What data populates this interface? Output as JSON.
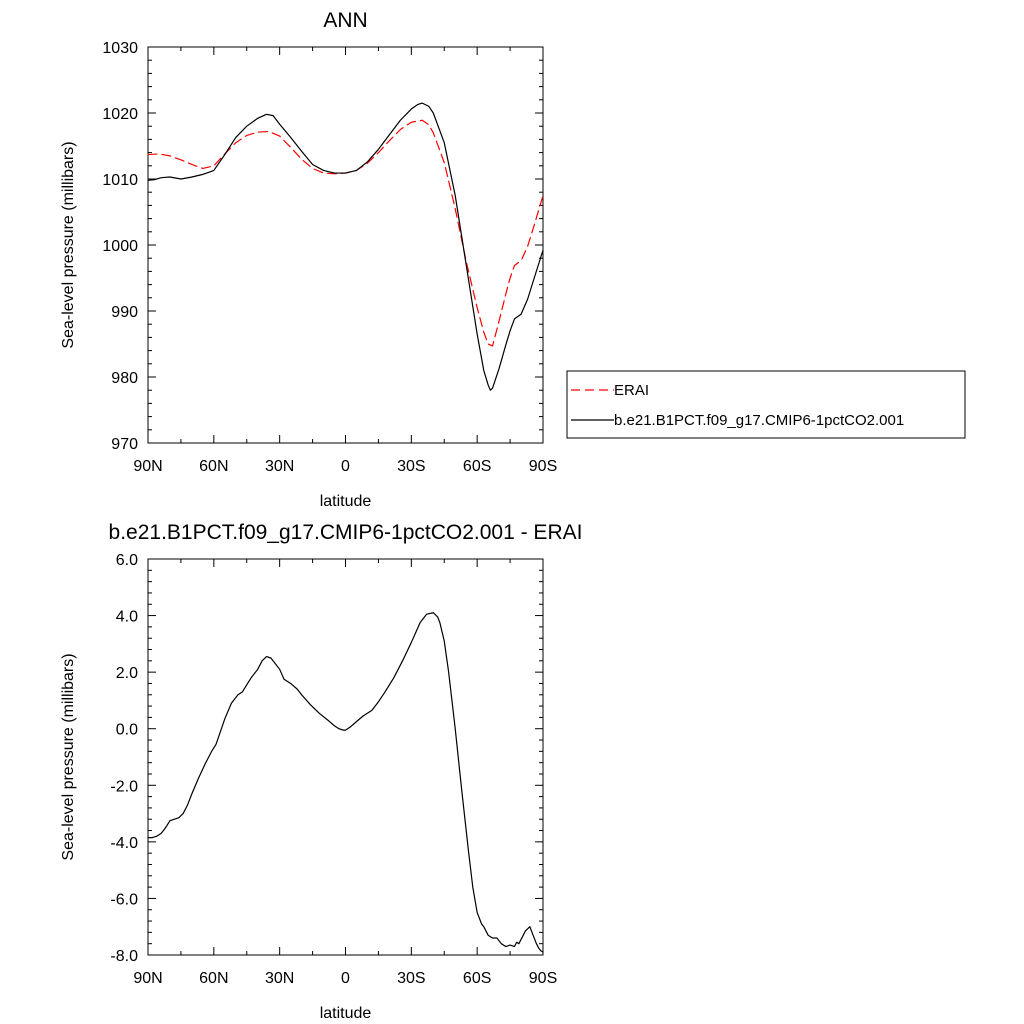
{
  "chart_data": [
    {
      "type": "line",
      "title": "ANN",
      "xlabel": "latitude",
      "ylabel": "Sea-level pressure (millibars)",
      "xlim": [
        90,
        -90
      ],
      "ylim": [
        970,
        1030
      ],
      "xticks": [
        90,
        60,
        30,
        0,
        -30,
        -60,
        -90
      ],
      "xtick_labels": [
        "90N",
        "60N",
        "30N",
        "0",
        "30S",
        "60S",
        "90S"
      ],
      "yticks": [
        970,
        980,
        990,
        1000,
        1010,
        1020,
        1030
      ],
      "ytick_labels": [
        "970",
        "980",
        "990",
        "1000",
        "1010",
        "1020",
        "1030"
      ],
      "grid": false,
      "legend_position": "right",
      "series": [
        {
          "name": "ERAI",
          "color": "#ff0000",
          "dash": "dashed",
          "x": [
            90,
            85,
            80,
            75,
            70,
            65,
            60,
            55,
            50,
            45,
            40,
            35,
            30,
            25,
            20,
            15,
            10,
            5,
            0,
            -5,
            -10,
            -15,
            -20,
            -25,
            -30,
            -35,
            -38,
            -40,
            -45,
            -50,
            -55,
            -60,
            -63,
            -65,
            -67,
            -70,
            -73,
            -75,
            -77,
            -80,
            -83,
            -86,
            -90
          ],
          "y": [
            1013.7,
            1013.8,
            1013.5,
            1012.9,
            1012.2,
            1011.6,
            1012.0,
            1013.8,
            1015.5,
            1016.6,
            1017.1,
            1017.2,
            1016.5,
            1014.8,
            1013.0,
            1011.6,
            1010.9,
            1010.8,
            1010.9,
            1011.3,
            1012.4,
            1014.0,
            1015.8,
            1017.5,
            1018.6,
            1018.9,
            1018.2,
            1017.0,
            1012.5,
            1005.5,
            997.5,
            990.5,
            986.8,
            985.0,
            984.7,
            988.5,
            992.5,
            995.0,
            996.9,
            997.6,
            999.8,
            1003.0,
            1007.5
          ]
        },
        {
          "name": "b.e21.B1PCT.f09_g17.CMIP6-1pctCO2.001",
          "color": "#000000",
          "dash": "solid",
          "x": [
            90,
            87,
            84,
            80,
            75,
            70,
            65,
            60,
            55,
            50,
            45,
            40,
            36,
            33,
            30,
            25,
            20,
            15,
            10,
            5,
            0,
            -5,
            -10,
            -15,
            -20,
            -25,
            -30,
            -33,
            -35,
            -38,
            -40,
            -45,
            -50,
            -55,
            -60,
            -63,
            -65,
            -66,
            -67,
            -70,
            -73,
            -75,
            -77,
            -80,
            -83,
            -86,
            -90
          ],
          "y": [
            1009.8,
            1009.9,
            1010.2,
            1010.3,
            1010.0,
            1010.3,
            1010.7,
            1011.3,
            1013.7,
            1016.3,
            1018.0,
            1019.2,
            1019.8,
            1019.6,
            1018.3,
            1016.3,
            1014.2,
            1012.2,
            1011.3,
            1010.9,
            1010.9,
            1011.3,
            1012.6,
            1014.5,
            1016.7,
            1018.9,
            1020.6,
            1021.3,
            1021.5,
            1021.0,
            1020.0,
            1015.5,
            1007.5,
            997.0,
            986.5,
            981.0,
            978.8,
            978.0,
            978.3,
            981.3,
            984.8,
            987.0,
            988.8,
            989.5,
            991.8,
            995.0,
            999.2
          ]
        }
      ]
    },
    {
      "type": "line",
      "title": "b.e21.B1PCT.f09_g17.CMIP6-1pctCO2.001 - ERAI",
      "xlabel": "latitude",
      "ylabel": "Sea-level pressure (millibars)",
      "xlim": [
        90,
        -90
      ],
      "ylim": [
        -8,
        6
      ],
      "xticks": [
        90,
        60,
        30,
        0,
        -30,
        -60,
        -90
      ],
      "xtick_labels": [
        "90N",
        "60N",
        "30N",
        "0",
        "30S",
        "60S",
        "90S"
      ],
      "yticks": [
        -8,
        -6,
        -4,
        -2,
        0,
        2,
        4,
        6
      ],
      "ytick_labels": [
        "-8.0",
        "-6.0",
        "-4.0",
        "-2.0",
        "0.0",
        "2.0",
        "4.0",
        "6.0"
      ],
      "grid": false,
      "series": [
        {
          "color": "#000000",
          "dash": "solid",
          "x": [
            90,
            88,
            86,
            84,
            82,
            80,
            78,
            76,
            74,
            72,
            70,
            67,
            64,
            61,
            59,
            57,
            55,
            52,
            49,
            47,
            45,
            43,
            40,
            38,
            36,
            34,
            32,
            30,
            28,
            25,
            22,
            20,
            16,
            12,
            8,
            5,
            3,
            1,
            0,
            -2,
            -5,
            -8,
            -12,
            -15,
            -18,
            -22,
            -26,
            -30,
            -34,
            -37,
            -40,
            -42,
            -43,
            -45,
            -47,
            -50,
            -53,
            -56,
            -58,
            -60,
            -62,
            -63,
            -65,
            -67,
            -69,
            -71,
            -73,
            -75,
            -77,
            -78,
            -79,
            -80,
            -81,
            -82,
            -84,
            -86,
            -87,
            -88,
            -89,
            -90
          ],
          "y": [
            -3.85,
            -3.85,
            -3.8,
            -3.7,
            -3.5,
            -3.25,
            -3.2,
            -3.15,
            -3.0,
            -2.7,
            -2.3,
            -1.75,
            -1.25,
            -0.8,
            -0.55,
            -0.1,
            0.35,
            0.9,
            1.2,
            1.3,
            1.55,
            1.8,
            2.1,
            2.4,
            2.55,
            2.5,
            2.3,
            2.1,
            1.75,
            1.6,
            1.4,
            1.2,
            0.85,
            0.55,
            0.3,
            0.1,
            0.0,
            -0.05,
            -0.05,
            0.05,
            0.25,
            0.45,
            0.65,
            0.95,
            1.3,
            1.8,
            2.4,
            3.05,
            3.75,
            4.05,
            4.1,
            3.95,
            3.75,
            3.1,
            2.0,
            0.0,
            -2.2,
            -4.3,
            -5.6,
            -6.5,
            -6.9,
            -7.0,
            -7.3,
            -7.4,
            -7.4,
            -7.6,
            -7.7,
            -7.65,
            -7.7,
            -7.55,
            -7.6,
            -7.45,
            -7.3,
            -7.15,
            -7.0,
            -7.4,
            -7.6,
            -7.75,
            -7.85,
            -7.9
          ]
        }
      ]
    }
  ]
}
